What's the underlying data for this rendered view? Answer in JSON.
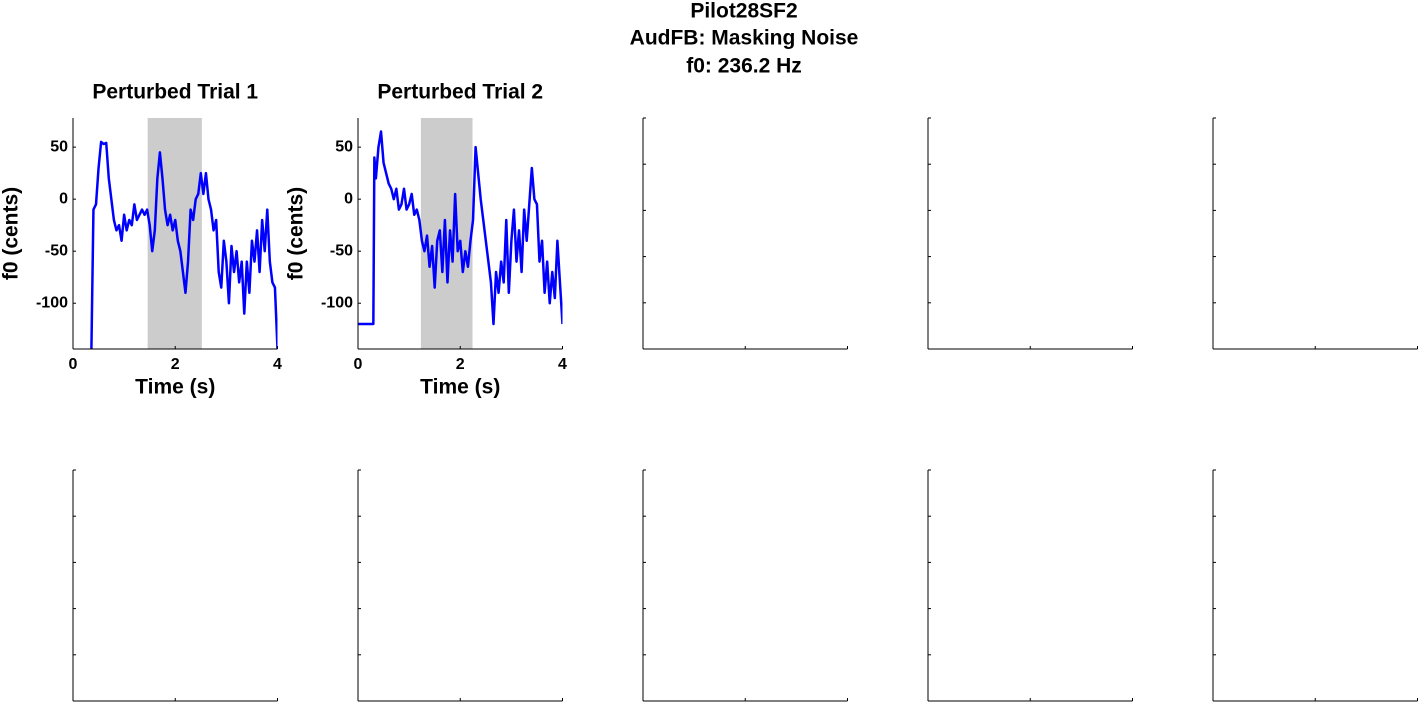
{
  "title_lines": [
    "Pilot28SF2",
    "AudFB: Masking Noise",
    "f0: 236.2 Hz"
  ],
  "chart_data": [
    {
      "type": "line",
      "title": "Perturbed Trial 1",
      "xlabel": "Time (s)",
      "ylabel": "f0 (cents)",
      "x": [
        0.36,
        0.4,
        0.45,
        0.5,
        0.55,
        0.6,
        0.65,
        0.7,
        0.75,
        0.8,
        0.85,
        0.9,
        0.95,
        1.0,
        1.05,
        1.1,
        1.15,
        1.2,
        1.25,
        1.3,
        1.35,
        1.4,
        1.45,
        1.5,
        1.55,
        1.6,
        1.65,
        1.7,
        1.75,
        1.8,
        1.85,
        1.9,
        1.95,
        2.0,
        2.05,
        2.1,
        2.15,
        2.2,
        2.25,
        2.3,
        2.35,
        2.4,
        2.45,
        2.5,
        2.55,
        2.6,
        2.65,
        2.7,
        2.75,
        2.8,
        2.85,
        2.9,
        2.95,
        3.0,
        3.05,
        3.1,
        3.15,
        3.2,
        3.25,
        3.3,
        3.35,
        3.4,
        3.45,
        3.5,
        3.55,
        3.6,
        3.65,
        3.7,
        3.75,
        3.8,
        3.85,
        3.9,
        3.95,
        4.0
      ],
      "series": [
        {
          "color": "#0000ff",
          "values": [
            -144,
            -10,
            -5,
            30,
            55,
            53,
            54,
            20,
            0,
            -20,
            -30,
            -25,
            -40,
            -15,
            -30,
            -20,
            -25,
            -5,
            -20,
            -15,
            -10,
            -15,
            -10,
            -25,
            -50,
            -30,
            20,
            45,
            20,
            -10,
            -25,
            -15,
            -30,
            -20,
            -40,
            -50,
            -70,
            -90,
            -60,
            -10,
            -20,
            0,
            5,
            25,
            5,
            25,
            0,
            -10,
            -30,
            -20,
            -70,
            -85,
            -40,
            -60,
            -100,
            -45,
            -70,
            -50,
            -80,
            -60,
            -110,
            -60,
            -90,
            -40,
            -60,
            -30,
            -70,
            -20,
            -50,
            -10,
            -60,
            -80,
            -85,
            -144
          ]
        }
      ],
      "xlim": [
        0,
        4
      ],
      "ylim": [
        -144,
        78
      ],
      "xticks": [
        0,
        2,
        4
      ],
      "yticks": [
        -100,
        -50,
        0,
        50
      ],
      "shade": [
        1.46,
        2.52
      ],
      "shade_color": "#cccccc",
      "tick_labels": true
    },
    {
      "type": "line",
      "title": "Perturbed Trial 2",
      "xlabel": "Time (s)",
      "ylabel": "f0 (cents)",
      "x": [
        0,
        0.3,
        0.32,
        0.35,
        0.4,
        0.45,
        0.5,
        0.55,
        0.6,
        0.65,
        0.7,
        0.75,
        0.8,
        0.85,
        0.9,
        0.95,
        1.0,
        1.05,
        1.1,
        1.15,
        1.2,
        1.25,
        1.3,
        1.35,
        1.4,
        1.45,
        1.5,
        1.55,
        1.6,
        1.65,
        1.7,
        1.75,
        1.8,
        1.85,
        1.9,
        1.95,
        2.0,
        2.05,
        2.1,
        2.15,
        2.2,
        2.25,
        2.3,
        2.35,
        2.4,
        2.45,
        2.5,
        2.55,
        2.6,
        2.65,
        2.7,
        2.75,
        2.8,
        2.85,
        2.9,
        2.95,
        3.0,
        3.05,
        3.1,
        3.15,
        3.2,
        3.25,
        3.3,
        3.35,
        3.4,
        3.45,
        3.5,
        3.55,
        3.6,
        3.65,
        3.7,
        3.75,
        3.8,
        3.85,
        3.9,
        3.95,
        4.0
      ],
      "series": [
        {
          "color": "#0000ff",
          "values": [
            -120,
            -120,
            40,
            20,
            50,
            65,
            35,
            25,
            15,
            10,
            0,
            10,
            -10,
            -5,
            10,
            -10,
            -5,
            5,
            -15,
            -10,
            -20,
            -40,
            -50,
            -35,
            -65,
            -45,
            -85,
            -40,
            -30,
            -70,
            -20,
            -80,
            -30,
            -60,
            5,
            -50,
            -40,
            -70,
            -50,
            -65,
            -40,
            -20,
            50,
            25,
            0,
            -20,
            -40,
            -60,
            -80,
            -120,
            -70,
            -90,
            -60,
            -80,
            -20,
            -90,
            -40,
            -10,
            -60,
            -30,
            -70,
            -10,
            -40,
            -5,
            30,
            0,
            -5,
            -60,
            -40,
            -90,
            -60,
            -100,
            -70,
            -95,
            -40,
            -80,
            -120
          ]
        }
      ],
      "xlim": [
        0,
        4
      ],
      "ylim": [
        -144,
        78
      ],
      "xticks": [
        0,
        2,
        4
      ],
      "yticks": [
        -100,
        -50,
        0,
        50
      ],
      "shade": [
        1.23,
        2.24
      ],
      "shade_color": "#cccccc",
      "tick_labels": true
    },
    {
      "type": "empty",
      "xlim": [
        0,
        1
      ],
      "ylim": [
        0,
        1
      ],
      "xticks": [
        0,
        0.5,
        1
      ],
      "yticks": [
        0,
        0.2,
        0.4,
        0.6,
        0.8,
        1
      ],
      "tick_labels": false
    },
    {
      "type": "empty",
      "xlim": [
        0,
        1
      ],
      "ylim": [
        0,
        1
      ],
      "xticks": [
        0,
        0.5,
        1
      ],
      "yticks": [
        0,
        0.2,
        0.4,
        0.6,
        0.8,
        1
      ],
      "tick_labels": false
    },
    {
      "type": "empty",
      "xlim": [
        0,
        1
      ],
      "ylim": [
        0,
        1
      ],
      "xticks": [
        0,
        0.5,
        1
      ],
      "yticks": [
        0,
        0.2,
        0.4,
        0.6,
        0.8,
        1
      ],
      "tick_labels": false
    },
    {
      "type": "empty",
      "xlim": [
        0,
        1
      ],
      "ylim": [
        0,
        1
      ],
      "xticks": [
        0,
        0.5,
        1
      ],
      "yticks": [
        0,
        0.2,
        0.4,
        0.6,
        0.8,
        1
      ],
      "tick_labels": false
    },
    {
      "type": "empty",
      "xlim": [
        0,
        1
      ],
      "ylim": [
        0,
        1
      ],
      "xticks": [
        0,
        0.5,
        1
      ],
      "yticks": [
        0,
        0.2,
        0.4,
        0.6,
        0.8,
        1
      ],
      "tick_labels": false
    },
    {
      "type": "empty",
      "xlim": [
        0,
        1
      ],
      "ylim": [
        0,
        1
      ],
      "xticks": [
        0,
        0.5,
        1
      ],
      "yticks": [
        0,
        0.2,
        0.4,
        0.6,
        0.8,
        1
      ],
      "tick_labels": false
    },
    {
      "type": "empty",
      "xlim": [
        0,
        1
      ],
      "ylim": [
        0,
        1
      ],
      "xticks": [
        0,
        0.5,
        1
      ],
      "yticks": [
        0,
        0.2,
        0.4,
        0.6,
        0.8,
        1
      ],
      "tick_labels": false
    },
    {
      "type": "empty",
      "xlim": [
        0,
        1
      ],
      "ylim": [
        0,
        1
      ],
      "xticks": [
        0,
        0.5,
        1
      ],
      "yticks": [
        0,
        0.2,
        0.4,
        0.6,
        0.8,
        1
      ],
      "tick_labels": false
    }
  ]
}
